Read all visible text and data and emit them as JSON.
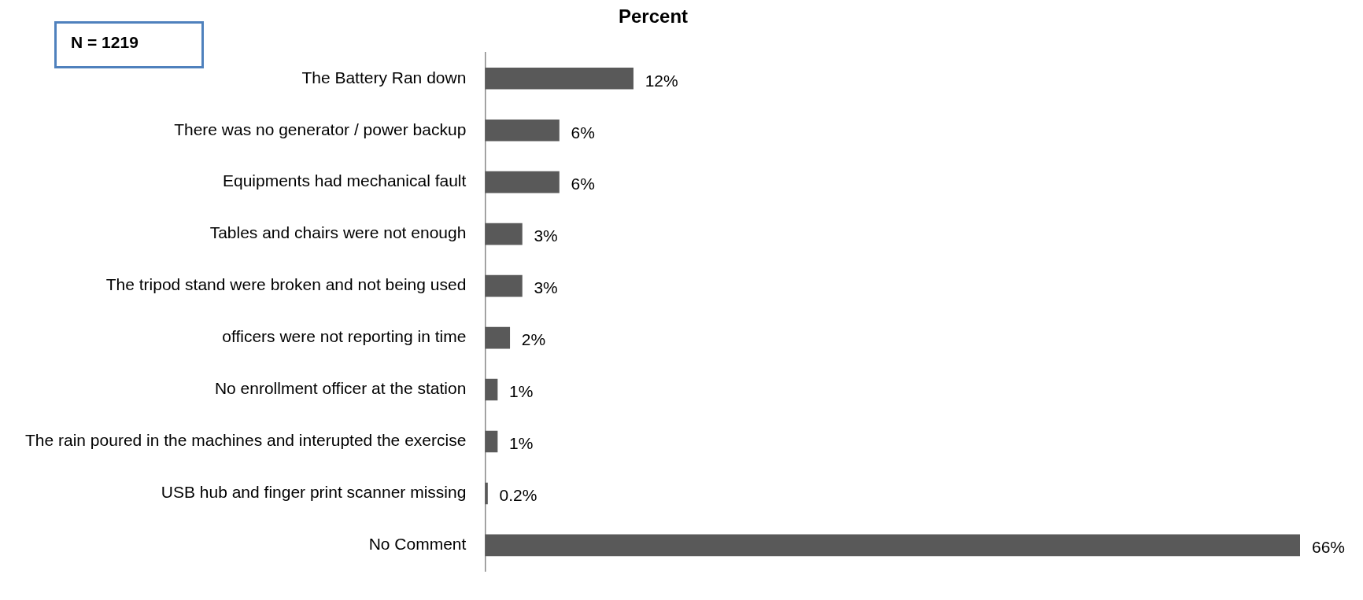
{
  "chart_data": {
    "type": "bar",
    "orientation": "horizontal",
    "title": "Percent",
    "annotations": [
      "N = 1219"
    ],
    "categories": [
      "The Battery Ran down",
      "There was no generator / power backup",
      "Equipments had mechanical fault",
      "Tables and chairs were not enough",
      "The tripod stand were broken and not being used",
      "officers were not reporting in time",
      "No enrollment officer at the station",
      "The rain poured in the machines and interupted the exercise",
      "USB hub and finger print scanner missing",
      "No Comment"
    ],
    "values": [
      12,
      6,
      6,
      3,
      3,
      2,
      1,
      1,
      0.2,
      66
    ],
    "value_labels": [
      "12%",
      "6%",
      "6%",
      "3%",
      "3%",
      "2%",
      "1%",
      "1%",
      "0.2%",
      "66%"
    ],
    "color": "#595959",
    "legend": false,
    "grid": false
  }
}
